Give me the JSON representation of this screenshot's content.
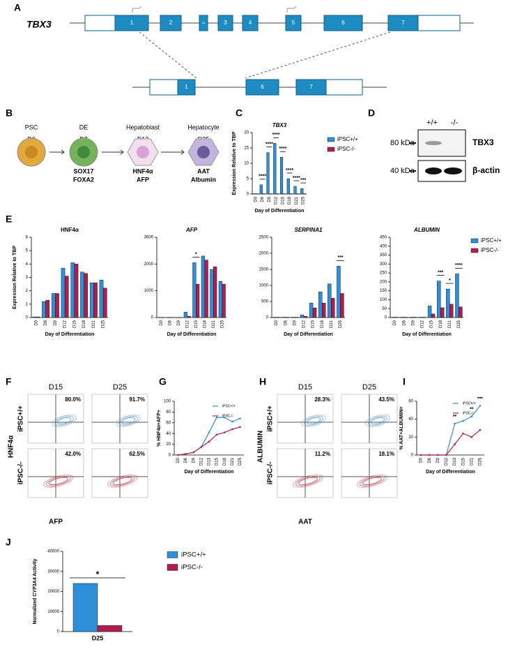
{
  "panel_labels": [
    "A",
    "B",
    "C",
    "D",
    "E",
    "F",
    "G",
    "H",
    "I",
    "J"
  ],
  "gene_diagram": {
    "gene": "TBX3",
    "exons": [
      "1",
      "2",
      "2a",
      "3",
      "4",
      "5",
      "6",
      "7"
    ],
    "edited_exons": [
      "1",
      "6",
      "7"
    ]
  },
  "differentiation": {
    "stages": [
      {
        "name": "PSC",
        "day": "D0",
        "markers": []
      },
      {
        "name": "DE",
        "day": "D7",
        "markers": [
          "SOX17",
          "FOXA2"
        ]
      },
      {
        "name": "Hepatoblast",
        "day": "D13",
        "markers": [
          "HNF4α",
          "AFP"
        ]
      },
      {
        "name": "Hepatocyte",
        "day": "D25",
        "markers": [
          "AAT",
          "Albumin"
        ]
      }
    ]
  },
  "western": {
    "lanes": [
      "+/+",
      "-/-"
    ],
    "bands": [
      {
        "size": "80 kDa",
        "protein": "TBX3"
      },
      {
        "size": "40 kDa",
        "protein": "β-actin"
      }
    ]
  },
  "flow_F": {
    "columns": [
      "D15",
      "D25"
    ],
    "rows": [
      "iPSC+/+",
      "iPSC-/-"
    ],
    "percentages": [
      [
        "80.0%",
        "91.7%"
      ],
      [
        "42.0%",
        "62.5%"
      ]
    ],
    "y_label": "HNF4α",
    "x_label": "AFP"
  },
  "flow_H": {
    "columns": [
      "D15",
      "D25"
    ],
    "rows": [
      "iPSC+/+",
      "iPSC-/-"
    ],
    "percentages": [
      [
        "28.3%",
        "43.5%"
      ],
      [
        "11.2%",
        "18.1%"
      ]
    ],
    "y_label": "ALBUMIN",
    "x_label": "AAT"
  },
  "chart_data": [
    {
      "type": "bar",
      "title": "TBX3",
      "y_label": "Expression Relative to TBP",
      "x_label": "Day of Differentiation",
      "categories": [
        "D0",
        "D6",
        "D9",
        "D12",
        "D15",
        "D18",
        "D21",
        "D25"
      ],
      "series": [
        {
          "name": "iPSC+/+",
          "color": "#2f8fd8",
          "values": [
            0.1,
            3,
            13.5,
            16.5,
            12,
            5,
            2.5,
            1.8
          ]
        },
        {
          "name": "iPSC-/-",
          "color": "#b01e4e",
          "values": [
            0.1,
            0.1,
            0.1,
            0.1,
            0.1,
            0.1,
            0.1,
            0.1
          ]
        }
      ],
      "significance": [
        null,
        "****",
        "****",
        "****",
        "****",
        "****",
        "****",
        "***"
      ],
      "ylim": [
        0,
        20
      ],
      "yticks": [
        0,
        5,
        10,
        15,
        20
      ]
    },
    {
      "type": "bar",
      "title": "HNF4α",
      "y_label": "Expression Relative to TBP",
      "x_label": "Day of Differentiation",
      "categories": [
        "D0",
        "D6",
        "D9",
        "D12",
        "D15",
        "D18",
        "D21",
        "D25"
      ],
      "series": [
        {
          "color": "#2f8fd8",
          "values": [
            0.05,
            1.2,
            1.8,
            3.7,
            4.1,
            3.4,
            2.6,
            2.8
          ]
        },
        {
          "color": "#b01e4e",
          "values": [
            0.05,
            1.3,
            1.8,
            3.1,
            4.0,
            3.3,
            2.6,
            2.2
          ]
        }
      ],
      "ylim": [
        0,
        6
      ],
      "yticks": [
        0,
        1,
        2,
        3,
        4,
        5,
        6
      ]
    },
    {
      "type": "bar",
      "title": "AFP",
      "x_label": "Day of Differentiation",
      "categories": [
        "D0",
        "D6",
        "D9",
        "D12",
        "D15",
        "D18",
        "D21",
        "D25"
      ],
      "series": [
        {
          "color": "#2f8fd8",
          "values": [
            5,
            5,
            5,
            200,
            2050,
            2300,
            1800,
            1350
          ]
        },
        {
          "color": "#b01e4e",
          "values": [
            5,
            5,
            5,
            50,
            1250,
            2150,
            1900,
            1250
          ]
        }
      ],
      "significance": [
        null,
        null,
        null,
        null,
        "*",
        null,
        null,
        null
      ],
      "ylim": [
        0,
        3000
      ],
      "yticks": [
        0,
        1000,
        2000,
        3000
      ]
    },
    {
      "type": "bar",
      "title": "SERPINA1",
      "x_label": "Day of Differentiation",
      "categories": [
        "D0",
        "D6",
        "D9",
        "D12",
        "D15",
        "D18",
        "D21",
        "D25"
      ],
      "series": [
        {
          "color": "#2f8fd8",
          "values": [
            10,
            10,
            10,
            80,
            450,
            800,
            1050,
            1600
          ]
        },
        {
          "color": "#b01e4e",
          "values": [
            10,
            10,
            10,
            40,
            300,
            450,
            600,
            750
          ]
        }
      ],
      "significance": [
        null,
        null,
        null,
        null,
        null,
        null,
        null,
        "***"
      ],
      "ylim": [
        0,
        2500
      ],
      "yticks": [
        0,
        500,
        1000,
        1500,
        2000,
        2500
      ]
    },
    {
      "type": "bar",
      "title": "ALBUMIN",
      "x_label": "Day of Differentiation",
      "categories": [
        "D0",
        "D6",
        "D9",
        "D12",
        "D15",
        "D18",
        "D21",
        "D25"
      ],
      "series": [
        {
          "name": "iPSC+/+",
          "color": "#2f8fd8",
          "values": [
            2,
            2,
            2,
            2,
            65,
            205,
            160,
            245
          ]
        },
        {
          "name": "iPSC-/-",
          "color": "#b01e4e",
          "values": [
            2,
            2,
            2,
            2,
            20,
            55,
            75,
            60
          ]
        }
      ],
      "significance": [
        null,
        null,
        null,
        null,
        null,
        "***",
        "*",
        "****"
      ],
      "ylim": [
        0,
        450
      ],
      "yticks": [
        0,
        50,
        100,
        150,
        200,
        250,
        300,
        350,
        400,
        450
      ]
    },
    {
      "type": "line",
      "y_label": "% HNF4α+AFP+",
      "x_label": "Day of Differentiation",
      "categories": [
        "D0",
        "D6",
        "D9",
        "D12",
        "D13",
        "D15",
        "D18",
        "D21",
        "D25"
      ],
      "series": [
        {
          "name": "iPSC+/+",
          "color": "#2f8fd8",
          "values": [
            0,
            2,
            5,
            15,
            42,
            70,
            70,
            62,
            68
          ]
        },
        {
          "name": "iPSC-/-",
          "color": "#b01e4e",
          "values": [
            0,
            2,
            5,
            15,
            25,
            38,
            42,
            48,
            52
          ]
        }
      ],
      "ylim": [
        0,
        100
      ],
      "yticks": [
        0,
        20,
        40,
        60,
        80,
        100
      ]
    },
    {
      "type": "line",
      "y_label": "% AAT+ALBUMIN+",
      "x_label": "Day of Differentiation",
      "categories": [
        "D0",
        "D6",
        "D9",
        "D12",
        "D13",
        "D15",
        "D21",
        "D25"
      ],
      "series": [
        {
          "name": "iPSC+/+",
          "color": "#2f8fd8",
          "values": [
            0,
            0,
            0,
            0,
            35,
            38,
            43,
            55
          ]
        },
        {
          "name": "iPSC-/-",
          "color": "#b01e4e",
          "values": [
            0,
            0,
            0,
            0,
            12,
            24,
            20,
            28
          ]
        }
      ],
      "significance": [
        null,
        null,
        null,
        null,
        "**",
        null,
        "**",
        "***"
      ],
      "ylim": [
        0,
        60
      ],
      "yticks": [
        0,
        20,
        40,
        60
      ]
    },
    {
      "type": "bar",
      "y_label": "Normalized CYP3A4 Activity",
      "categories": [
        "D25"
      ],
      "series": [
        {
          "name": "iPSC+/+",
          "color": "#2f8fd8",
          "values": [
            24000
          ]
        },
        {
          "name": "iPSC-/-",
          "color": "#b01e4e",
          "values": [
            3000
          ]
        }
      ],
      "significance": [
        "*"
      ],
      "ylim": [
        0,
        40000
      ],
      "yticks": [
        0,
        10000,
        20000,
        30000,
        40000
      ]
    }
  ]
}
